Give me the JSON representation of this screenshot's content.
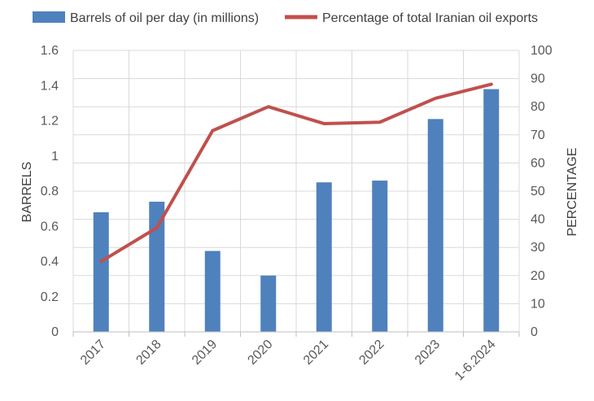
{
  "chart_data": {
    "type": "bar",
    "categories": [
      "2017",
      "2018",
      "2019",
      "2020",
      "2021",
      "2022",
      "2023",
      "1-6.2024"
    ],
    "series": [
      {
        "name": "Barrels of oil per day (in millions)",
        "type": "bar",
        "axis": "left",
        "color": "#4F81BD",
        "values": [
          0.68,
          0.74,
          0.46,
          0.32,
          0.85,
          0.86,
          1.21,
          1.38
        ]
      },
      {
        "name": "Percentage of total Iranian oil exports",
        "type": "line",
        "axis": "right",
        "color": "#C0504D",
        "values": [
          25,
          37,
          71.5,
          80,
          74,
          74.5,
          83,
          88
        ]
      }
    ],
    "xlabel": "",
    "ylabel": "BARRELS",
    "y2label": "PERCENTAGE",
    "ylim": [
      0,
      1.6
    ],
    "y2lim": [
      0,
      100
    ],
    "yticks": [
      "0",
      "0.2",
      "0.4",
      "0.6",
      "0.8",
      "1",
      "1.2",
      "1.4",
      "1.6"
    ],
    "y2ticks": [
      "0",
      "10",
      "20",
      "30",
      "40",
      "50",
      "60",
      "70",
      "80",
      "90",
      "100"
    ],
    "grid": true,
    "legend_position": "top"
  }
}
